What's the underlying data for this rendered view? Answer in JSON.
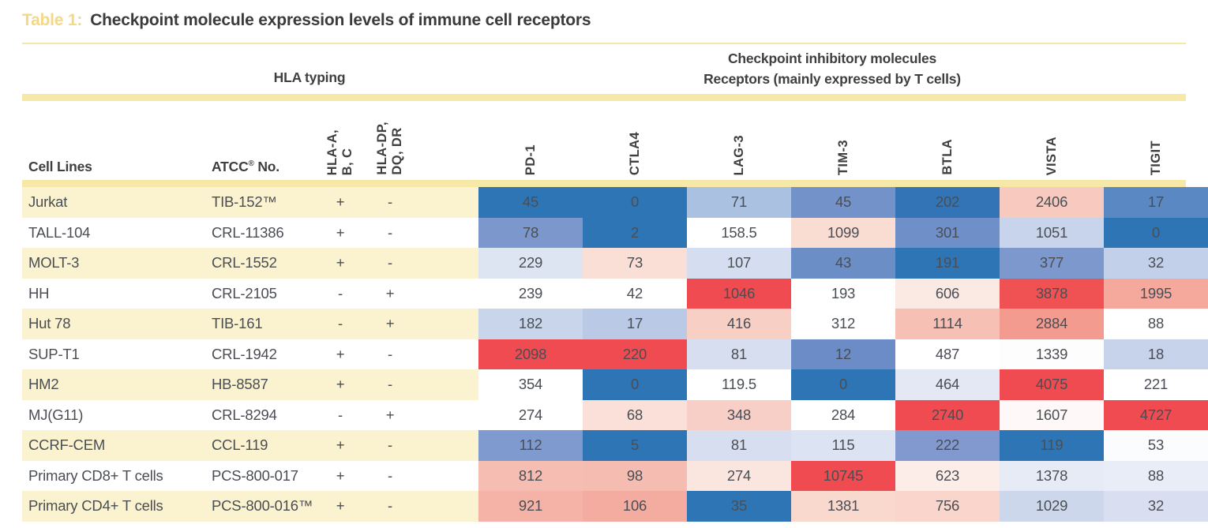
{
  "title": {
    "prefix": "Table 1:",
    "text": "Checkpoint molecule expression levels of immune cell receptors"
  },
  "group_headers": {
    "hla": "HLA typing",
    "checkpoint_line1": "Checkpoint inhibitory molecules",
    "checkpoint_line2": "Receptors (mainly expressed by T cells)"
  },
  "column_headers": {
    "cell_lines": "Cell Lines",
    "atcc_prefix": "ATCC",
    "atcc_reg": "®",
    "atcc_suffix": " No.",
    "hla_abc": "HLA-A,\nB, C",
    "hla_dpdqdr": "HLA-DP,\nDQ, DR"
  },
  "colors": {
    "accent_gold": "#f2d887",
    "rule_yellow": "#f6e7a2",
    "bar_yellow": "#f6e8a6",
    "row_stripe_yellow": "#fbf3cf",
    "heat_low_blue": "#2E75B6",
    "heat_mid_white": "#FFFFFF",
    "heat_high_red": "#EF4B50",
    "header_text": "#3f3f3f",
    "body_text": "#4a4e54"
  },
  "chart_data": {
    "type": "heatmap",
    "title": "Checkpoint molecule expression levels of immune cell receptors",
    "column_groups": [
      "HLA typing",
      "Checkpoint inhibitory molecules Receptors (mainly expressed by T cells)"
    ],
    "columns": [
      "PD-1",
      "CTLA4",
      "LAG-3",
      "TIM-3",
      "BTLA",
      "VISTA",
      "TIGIT"
    ],
    "colorscale": {
      "low": "#2E75B6",
      "mid": "#FFFFFF",
      "high": "#EF4B50",
      "note": "diverging blue-white-red scaled within each column"
    },
    "rows": [
      {
        "cell_line": "Jurkat",
        "atcc_no": "TIB-152™",
        "hla_abc": "+",
        "hla_dpdqdr": "-",
        "striped": true,
        "values": [
          "45",
          "0",
          "71",
          "45",
          "202",
          "2406",
          "17"
        ],
        "value_colors": [
          "#2E75B6",
          "#2E75B6",
          "#ABC1E1",
          "#7392CA",
          "#3274B5",
          "#F7C9BF",
          "#5A88C2"
        ]
      },
      {
        "cell_line": "TALL-104",
        "atcc_no": "CRL-11386",
        "hla_abc": "+",
        "hla_dpdqdr": "-",
        "striped": false,
        "values": [
          "78",
          "2",
          "158.5",
          "1099",
          "301",
          "1051",
          "0"
        ],
        "value_colors": [
          "#7B97CC",
          "#2E75B6",
          "#FFFFFF",
          "#F9DCD2",
          "#6E8FC8",
          "#C8D4EB",
          "#2E75B6"
        ]
      },
      {
        "cell_line": "MOLT-3",
        "atcc_no": "CRL-1552",
        "hla_abc": "+",
        "hla_dpdqdr": "-",
        "striped": true,
        "values": [
          "229",
          "73",
          "107",
          "43",
          "191",
          "377",
          "32"
        ],
        "value_colors": [
          "#DDE4F2",
          "#FADFD7",
          "#D5DEF0",
          "#6C8EC7",
          "#2E75B6",
          "#7C98CD",
          "#C2D0E9"
        ]
      },
      {
        "cell_line": "HH",
        "atcc_no": "CRL-2105",
        "hla_abc": "-",
        "hla_dpdqdr": "+",
        "striped": false,
        "values": [
          "239",
          "42",
          "1046",
          "193",
          "606",
          "3878",
          "1995"
        ],
        "value_colors": [
          "#FFFFFF",
          "#FFFFFF",
          "#EF4B50",
          "#FFFFFF",
          "#FBE9E4",
          "#F05254",
          "#F5A99C"
        ]
      },
      {
        "cell_line": "Hut 78",
        "atcc_no": "TIB-161",
        "hla_abc": "-",
        "hla_dpdqdr": "+",
        "striped": true,
        "values": [
          "182",
          "17",
          "416",
          "312",
          "1114",
          "2884",
          "88"
        ],
        "value_colors": [
          "#C9D5EB",
          "#B9C9E6",
          "#F8CFC5",
          "#FFFFFF",
          "#F6C0B4",
          "#F49B8F",
          "#FFFFFF"
        ]
      },
      {
        "cell_line": "SUP-T1",
        "atcc_no": "CRL-1942",
        "hla_abc": "+",
        "hla_dpdqdr": "-",
        "striped": false,
        "values": [
          "2098",
          "220",
          "81",
          "12",
          "487",
          "1339",
          "18"
        ],
        "value_colors": [
          "#EF4B50",
          "#EF4B50",
          "#D6DEF0",
          "#6B8CC6",
          "#FFFFFF",
          "#FDFDFE",
          "#C7D3EA"
        ]
      },
      {
        "cell_line": "HM2",
        "atcc_no": "HB-8587",
        "hla_abc": "+",
        "hla_dpdqdr": "-",
        "striped": true,
        "values": [
          "354",
          "0",
          "119.5",
          "0",
          "464",
          "4075",
          "221"
        ],
        "value_colors": [
          "#FFFFFF",
          "#2E75B6",
          "#FFFFFF",
          "#2E75B6",
          "#E3E8F4",
          "#EF4B50",
          "#FFFFFF"
        ]
      },
      {
        "cell_line": "MJ(G11)",
        "atcc_no": "CRL-8294",
        "hla_abc": "-",
        "hla_dpdqdr": "+",
        "striped": false,
        "values": [
          "274",
          "68",
          "348",
          "284",
          "2740",
          "1607",
          "4727"
        ],
        "value_colors": [
          "#FFFFFF",
          "#FAE0D8",
          "#F8CFC6",
          "#FFFFFF",
          "#EF4B50",
          "#FEF9F8",
          "#EF4B50"
        ]
      },
      {
        "cell_line": "CCRF-CEM",
        "atcc_no": "CCL-119",
        "hla_abc": "+",
        "hla_dpdqdr": "-",
        "striped": true,
        "values": [
          "112",
          "5",
          "81",
          "115",
          "222",
          "119",
          "53"
        ],
        "value_colors": [
          "#7E9ACE",
          "#2E75B6",
          "#D6DEF0",
          "#DCE3F2",
          "#8199CE",
          "#2E75B6",
          "#FBFCFE"
        ]
      },
      {
        "cell_line": "Primary CD8+ T cells",
        "atcc_no": "PCS-800-017",
        "hla_abc": "+",
        "hla_dpdqdr": "-",
        "striped": false,
        "values": [
          "812",
          "98",
          "274",
          "10745",
          "623",
          "1378",
          "88"
        ],
        "value_colors": [
          "#F6BDB2",
          "#F5BCB1",
          "#FBE6DF",
          "#EF4B50",
          "#FCEDE9",
          "#E7EBF6",
          "#E9EDF7"
        ]
      },
      {
        "cell_line": "Primary CD4+ T cells",
        "atcc_no": "PCS-800-016™",
        "hla_abc": "+",
        "hla_dpdqdr": "-",
        "striped": true,
        "values": [
          "921",
          "106",
          "35",
          "1381",
          "756",
          "1029",
          "32"
        ],
        "value_colors": [
          "#F5B3A7",
          "#F4ACA0",
          "#2E75B6",
          "#F9D8CE",
          "#F9D5CB",
          "#CCD7EC",
          "#D9DFF1"
        ]
      }
    ]
  }
}
